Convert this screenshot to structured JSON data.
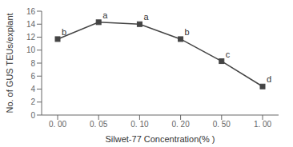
{
  "chart_data": {
    "type": "line",
    "xlabel": "Silwet-77  Concentration(% )",
    "ylabel": "No. of GUS TEUs/explant",
    "categories": [
      "0. 00",
      "0. 05",
      "0. 10",
      "0. 20",
      "0. 50",
      "1. 00"
    ],
    "values": [
      11.7,
      14.3,
      14.0,
      11.7,
      8.3,
      4.4
    ],
    "annotations": [
      "b",
      "a",
      "a",
      "b",
      "c",
      "d"
    ],
    "ylim": [
      0,
      16
    ],
    "yticks": [
      0,
      2,
      4,
      6,
      8,
      10,
      12,
      14,
      16
    ],
    "color": "#444444",
    "marker": "square",
    "grid": false
  }
}
